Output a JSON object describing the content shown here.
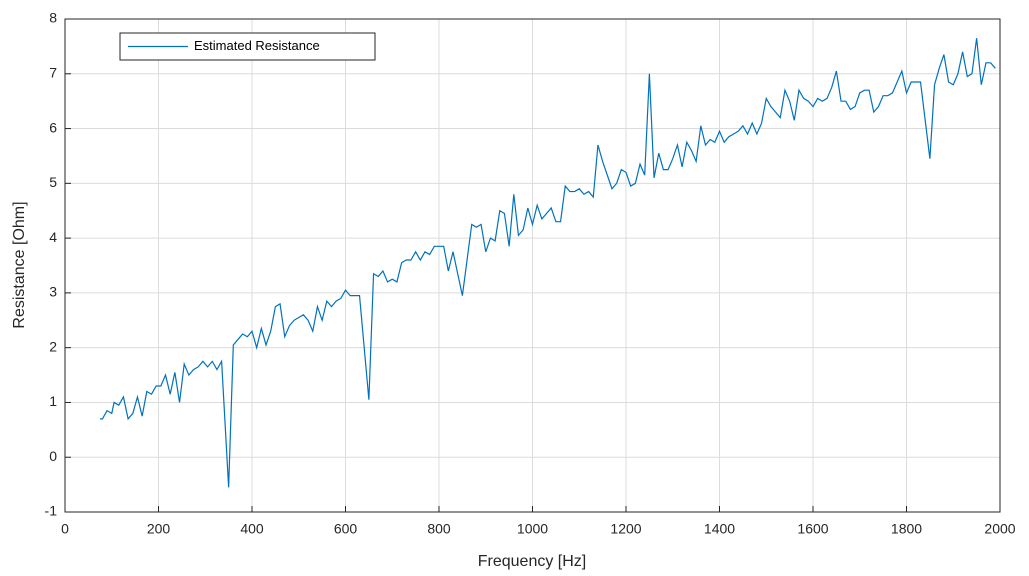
{
  "chart_data": {
    "type": "line",
    "xlabel": "Frequency [Hz]",
    "ylabel": "Resistance [Ohm]",
    "x": [
      75,
      80,
      90,
      100,
      105,
      115,
      125,
      135,
      145,
      155,
      165,
      175,
      185,
      195,
      205,
      215,
      225,
      235,
      245,
      255,
      265,
      275,
      285,
      295,
      305,
      315,
      325,
      335,
      350,
      360,
      370,
      380,
      390,
      400,
      410,
      420,
      430,
      440,
      450,
      460,
      470,
      480,
      490,
      500,
      510,
      520,
      530,
      540,
      550,
      560,
      570,
      580,
      590,
      600,
      610,
      620,
      630,
      650,
      660,
      670,
      680,
      690,
      700,
      710,
      720,
      730,
      740,
      750,
      760,
      770,
      780,
      790,
      800,
      810,
      820,
      830,
      850,
      860,
      870,
      880,
      890,
      900,
      910,
      920,
      930,
      940,
      950,
      960,
      970,
      980,
      990,
      1000,
      1010,
      1020,
      1030,
      1040,
      1050,
      1060,
      1070,
      1080,
      1090,
      1100,
      1110,
      1120,
      1130,
      1140,
      1150,
      1160,
      1170,
      1180,
      1190,
      1200,
      1210,
      1220,
      1230,
      1240,
      1250,
      1260,
      1270,
      1280,
      1290,
      1300,
      1310,
      1320,
      1330,
      1340,
      1350,
      1360,
      1370,
      1380,
      1390,
      1400,
      1410,
      1420,
      1430,
      1440,
      1450,
      1460,
      1470,
      1480,
      1490,
      1500,
      1510,
      1520,
      1530,
      1540,
      1550,
      1560,
      1570,
      1580,
      1590,
      1600,
      1610,
      1620,
      1630,
      1640,
      1650,
      1660,
      1670,
      1680,
      1690,
      1700,
      1710,
      1720,
      1730,
      1740,
      1750,
      1760,
      1770,
      1780,
      1790,
      1800,
      1810,
      1820,
      1830,
      1850,
      1860,
      1870,
      1880,
      1890,
      1900,
      1910,
      1920,
      1930,
      1940,
      1950,
      1960,
      1970,
      1980,
      1990
    ],
    "series": [
      {
        "name": "Estimated Resistance",
        "color": "#0072bd",
        "values": [
          0.7,
          0.7,
          0.85,
          0.8,
          1.0,
          0.95,
          1.1,
          0.7,
          0.8,
          1.1,
          0.75,
          1.2,
          1.15,
          1.3,
          1.3,
          1.5,
          1.15,
          1.55,
          1.0,
          1.7,
          1.5,
          1.6,
          1.65,
          1.75,
          1.65,
          1.75,
          1.6,
          1.75,
          -0.55,
          2.05,
          2.15,
          2.25,
          2.2,
          2.3,
          2.0,
          2.35,
          2.05,
          2.3,
          2.75,
          2.8,
          2.2,
          2.4,
          2.5,
          2.55,
          2.6,
          2.5,
          2.3,
          2.75,
          2.5,
          2.85,
          2.75,
          2.85,
          2.9,
          3.05,
          2.95,
          2.95,
          2.95,
          1.05,
          3.35,
          3.3,
          3.4,
          3.2,
          3.25,
          3.2,
          3.55,
          3.6,
          3.6,
          3.75,
          3.6,
          3.75,
          3.7,
          3.85,
          3.85,
          3.85,
          3.4,
          3.75,
          2.95,
          3.6,
          4.25,
          4.2,
          4.25,
          3.75,
          4.0,
          3.95,
          4.5,
          4.45,
          3.85,
          4.8,
          4.05,
          4.15,
          4.55,
          4.25,
          4.6,
          4.35,
          4.45,
          4.55,
          4.3,
          4.3,
          4.95,
          4.85,
          4.85,
          4.9,
          4.8,
          4.85,
          4.75,
          5.7,
          5.4,
          5.15,
          4.9,
          5.0,
          5.25,
          5.2,
          4.95,
          5.0,
          5.35,
          5.15,
          7.0,
          5.1,
          5.55,
          5.25,
          5.25,
          5.45,
          5.7,
          5.3,
          5.75,
          5.6,
          5.4,
          6.05,
          5.7,
          5.8,
          5.75,
          5.95,
          5.75,
          5.85,
          5.9,
          5.95,
          6.05,
          5.9,
          6.1,
          5.9,
          6.1,
          6.55,
          6.4,
          6.3,
          6.2,
          6.7,
          6.5,
          6.15,
          6.7,
          6.55,
          6.5,
          6.4,
          6.55,
          6.5,
          6.55,
          6.75,
          7.05,
          6.5,
          6.5,
          6.35,
          6.4,
          6.65,
          6.7,
          6.7,
          6.3,
          6.4,
          6.6,
          6.6,
          6.65,
          6.85,
          7.05,
          6.65,
          6.85,
          6.85,
          6.85,
          5.45,
          6.8,
          7.1,
          7.35,
          6.85,
          6.8,
          7.0,
          7.4,
          6.95,
          7.0,
          7.65,
          6.8,
          7.2,
          7.2,
          7.1
        ]
      }
    ],
    "xlim": [
      0,
      2000
    ],
    "xticks": [
      0,
      200,
      400,
      600,
      800,
      1000,
      1200,
      1400,
      1600,
      1800,
      2000
    ],
    "ylim": [
      -1,
      8
    ],
    "yticks": [
      -1,
      0,
      1,
      2,
      3,
      4,
      5,
      6,
      7,
      8
    ],
    "grid": true,
    "legend": "upper-left"
  }
}
